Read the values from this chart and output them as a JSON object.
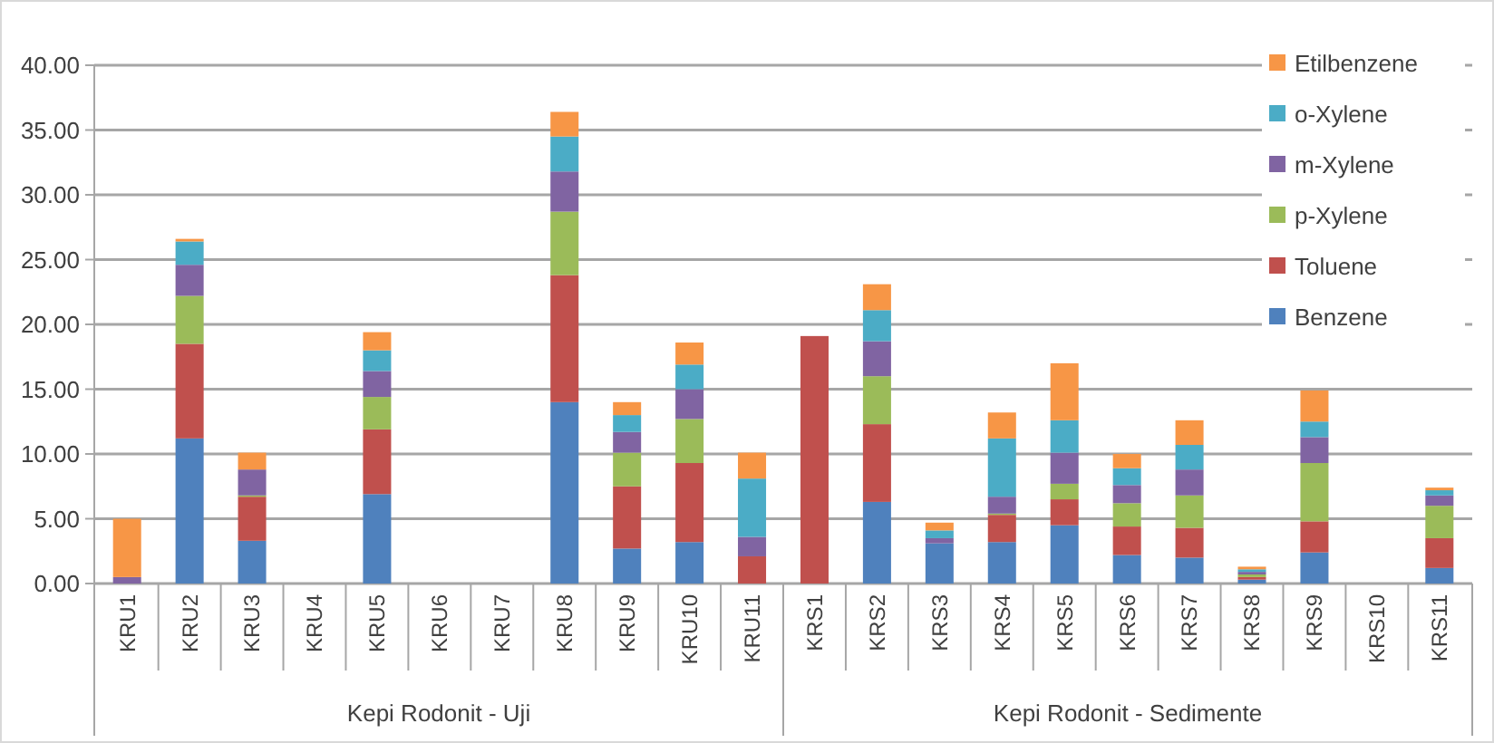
{
  "chart_data": {
    "type": "bar",
    "stacked": true,
    "categories": [
      "KRU1",
      "KRU2",
      "KRU3",
      "KRU4",
      "KRU5",
      "KRU6",
      "KRU7",
      "KRU8",
      "KRU9",
      "KRU10",
      "KRU11",
      "KRS1",
      "KRS2",
      "KRS3",
      "KRS4",
      "KRS5",
      "KRS6",
      "KRS7",
      "KRS8",
      "KRS9",
      "KRS10",
      "KRS11"
    ],
    "series": [
      {
        "name": "Benzene",
        "color": "#4f81bd",
        "values": [
          0,
          11.2,
          3.3,
          0,
          6.9,
          0,
          0,
          14.0,
          2.7,
          3.2,
          0,
          0,
          6.3,
          3.1,
          3.2,
          4.5,
          2.2,
          2.0,
          0.3,
          2.4,
          0,
          1.2
        ]
      },
      {
        "name": "Toluene",
        "color": "#c0504d",
        "values": [
          0,
          7.3,
          3.4,
          0,
          5.0,
          0,
          0,
          9.8,
          4.8,
          6.1,
          2.1,
          19.1,
          6.0,
          0,
          2.1,
          2.0,
          2.2,
          2.3,
          0.2,
          2.4,
          0,
          2.3
        ]
      },
      {
        "name": "p-Xylene",
        "color": "#9bbb59",
        "values": [
          0,
          3.7,
          0.1,
          0,
          2.5,
          0,
          0,
          4.9,
          2.6,
          3.4,
          0,
          0,
          3.7,
          0,
          0.1,
          1.2,
          1.8,
          2.5,
          0.2,
          4.5,
          0,
          2.5
        ]
      },
      {
        "name": "m-Xylene",
        "color": "#8064a2",
        "values": [
          0.5,
          2.4,
          2.0,
          0,
          2.0,
          0,
          0,
          3.1,
          1.6,
          2.3,
          1.5,
          0,
          2.7,
          0.4,
          1.3,
          2.4,
          1.4,
          2.0,
          0.2,
          2.0,
          0,
          0.8
        ]
      },
      {
        "name": "o-Xylene",
        "color": "#4bacc6",
        "values": [
          0,
          1.8,
          0,
          0,
          1.6,
          0,
          0,
          2.7,
          1.3,
          1.9,
          4.5,
          0,
          2.4,
          0.6,
          4.5,
          2.5,
          1.3,
          1.9,
          0.2,
          1.2,
          0,
          0.4
        ]
      },
      {
        "name": "Etilbenzene",
        "color": "#f79646",
        "values": [
          4.5,
          0.2,
          1.3,
          0,
          1.4,
          0,
          0,
          1.9,
          1.0,
          1.7,
          2.0,
          0,
          2.0,
          0.6,
          2.0,
          4.4,
          1.1,
          1.9,
          0.2,
          2.4,
          0,
          0.2
        ]
      }
    ],
    "ylim": [
      0,
      40
    ],
    "yticks": [
      {
        "value": 0,
        "label": "0.00"
      },
      {
        "value": 5,
        "label": "5.00"
      },
      {
        "value": 10,
        "label": "10.00"
      },
      {
        "value": 15,
        "label": "15.00"
      },
      {
        "value": 20,
        "label": "20.00"
      },
      {
        "value": 25,
        "label": "25.00"
      },
      {
        "value": 30,
        "label": "30.00"
      },
      {
        "value": 35,
        "label": "35.00"
      },
      {
        "value": 40,
        "label": "40.00"
      }
    ],
    "grid": "y",
    "legend": "top right",
    "annotations": [
      "Kepi Rodonit - Uji",
      "Kepi Rodonit - Sedimente"
    ]
  }
}
